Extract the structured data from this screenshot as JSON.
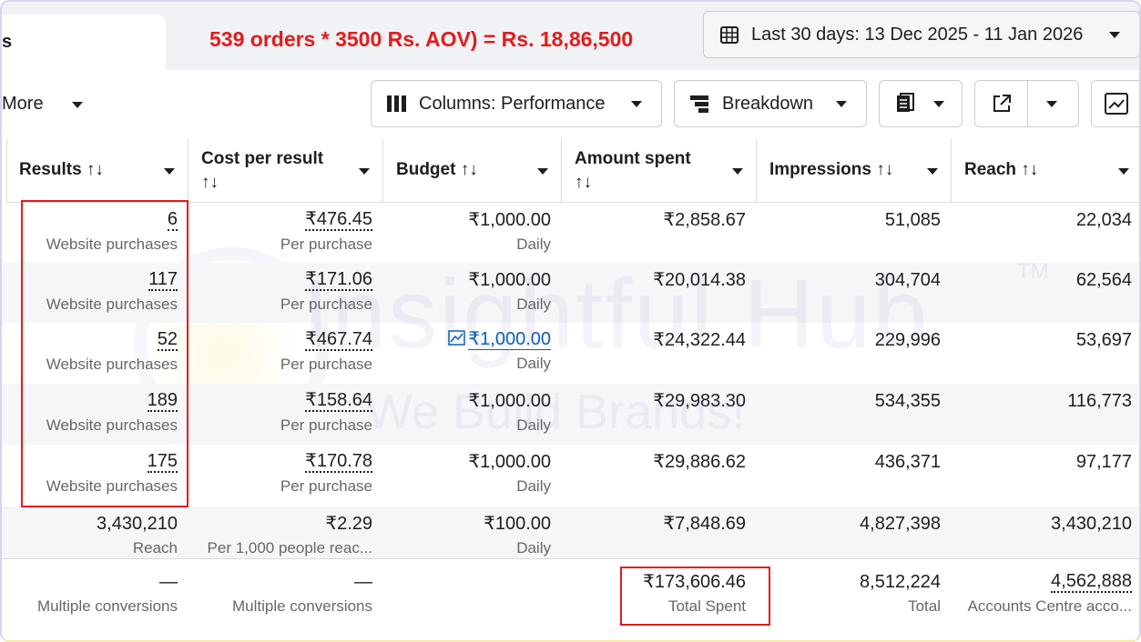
{
  "header": {
    "tab": "s",
    "annotation": "539 orders * 3500 Rs. AOV) = Rs. 18,86,500",
    "date_range": "Last 30 days: 13 Dec 2025 - 11 Jan 2026"
  },
  "toolbar": {
    "more": "More",
    "columns": "Columns: Performance",
    "breakdown": "Breakdown"
  },
  "watermark": {
    "title": "Insightful Hub",
    "mark": "TM",
    "tagline": "We Build Brands!"
  },
  "table": {
    "columns": [
      "Results ↑↓",
      "Cost per result ↑↓",
      "Budget ↑↓",
      "Amount spent ↑↓",
      "Impressions ↑↓",
      "Reach ↑↓"
    ],
    "rows": [
      [
        {
          "value": "6",
          "sub": "Website purchases"
        },
        {
          "value": "₹476.45",
          "sub": "Per purchase"
        },
        {
          "value": "₹1,000.00",
          "sub": "Daily"
        },
        {
          "value": "₹2,858.67"
        },
        {
          "value": "51,085"
        },
        {
          "value": "22,034"
        }
      ],
      [
        {
          "value": "117",
          "sub": "Website purchases"
        },
        {
          "value": "₹171.06",
          "sub": "Per purchase"
        },
        {
          "value": "₹1,000.00",
          "sub": "Daily"
        },
        {
          "value": "₹20,014.38"
        },
        {
          "value": "304,704"
        },
        {
          "value": "62,564"
        }
      ],
      [
        {
          "value": "52",
          "sub": "Website purchases"
        },
        {
          "value": "₹467.74",
          "sub": "Per purchase"
        },
        {
          "value": "₹1,000.00",
          "sub": "Daily",
          "link": true
        },
        {
          "value": "₹24,322.44"
        },
        {
          "value": "229,996"
        },
        {
          "value": "53,697"
        }
      ],
      [
        {
          "value": "189",
          "sub": "Website purchases"
        },
        {
          "value": "₹158.64",
          "sub": "Per purchase"
        },
        {
          "value": "₹1,000.00",
          "sub": "Daily"
        },
        {
          "value": "₹29,983.30"
        },
        {
          "value": "534,355"
        },
        {
          "value": "116,773"
        }
      ],
      [
        {
          "value": "175",
          "sub": "Website purchases"
        },
        {
          "value": "₹170.78",
          "sub": "Per purchase"
        },
        {
          "value": "₹1,000.00",
          "sub": "Daily"
        },
        {
          "value": "₹29,886.62"
        },
        {
          "value": "436,371"
        },
        {
          "value": "97,177"
        }
      ],
      [
        {
          "value": "3,430,210",
          "sub": "Reach"
        },
        {
          "value": "₹2.29",
          "sub": "Per 1,000 people reac..."
        },
        {
          "value": "₹100.00",
          "sub": "Daily"
        },
        {
          "value": "₹7,848.69"
        },
        {
          "value": "4,827,398"
        },
        {
          "value": "3,430,210"
        }
      ]
    ],
    "footer": [
      {
        "value": "—",
        "sub": "Multiple conversions"
      },
      {
        "value": "—",
        "sub": "Multiple conversions"
      },
      null,
      {
        "value": "₹173,606.46",
        "sub": "Total Spent"
      },
      {
        "value": "8,512,224",
        "sub": "Total"
      },
      {
        "value": "4,562,888",
        "sub": "Accounts Centre acco..."
      }
    ]
  }
}
